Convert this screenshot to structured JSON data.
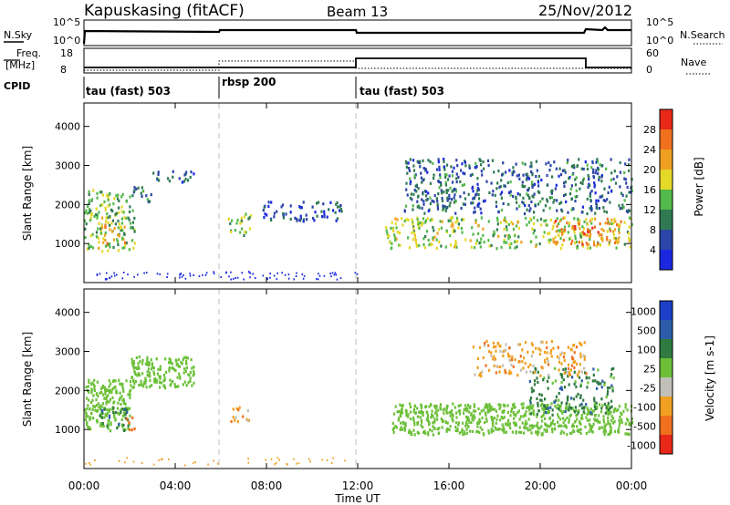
{
  "header": {
    "station": "Kapuskasing (fitACF)",
    "beam": "Beam 13",
    "date": "25/Nov/2012"
  },
  "noise_panel": {
    "left_label": "N.Sky",
    "left_ticks": [
      "10^5",
      "10^0"
    ],
    "right_label": "N.Search",
    "right_ticks": [
      "10^5",
      "10^0"
    ]
  },
  "freq_panel": {
    "label_line1": "Freq.",
    "label_line2": "[MHz]",
    "left_ticks": [
      "18",
      "8"
    ],
    "right_label": "Nave",
    "right_ticks": [
      "60",
      "0"
    ]
  },
  "cpid": {
    "label": "CPID",
    "segments": [
      {
        "text": "tau (fast) 503",
        "start_hour": 0
      },
      {
        "text": "rbsp 200",
        "start_hour": 6
      },
      {
        "text": "tau (fast) 503",
        "start_hour": 12
      }
    ]
  },
  "power_panel": {
    "ylabel": "Slant Range [km]",
    "yticks": [
      "1000",
      "2000",
      "3000",
      "4000"
    ],
    "colorbar_label": "Power [dB]",
    "colorbar_ticks": [
      "4",
      "8",
      "12",
      "16",
      "20",
      "24",
      "28"
    ],
    "colors": [
      "#1a28e0",
      "#2b45a8",
      "#2f7a52",
      "#52b94a",
      "#e4d828",
      "#f0a020",
      "#f07020",
      "#e82818"
    ]
  },
  "velocity_panel": {
    "ylabel": "Slant Range [km]",
    "yticks": [
      "1000",
      "2000",
      "3000",
      "4000"
    ],
    "colorbar_label": "Velocity [m s-1]",
    "colorbar_ticks": [
      "1000",
      "500",
      "100",
      "25",
      "-25",
      "-100",
      "-500",
      "-1000"
    ],
    "colors": [
      "#1c3ec8",
      "#2c5ca8",
      "#2e7a40",
      "#6cc038",
      "#c0c0b8",
      "#f0a020",
      "#f07020",
      "#e82818"
    ]
  },
  "x_axis": {
    "tick_labels": [
      "00:00",
      "04:00",
      "08:00",
      "12:00",
      "16:00",
      "20:00",
      "00:00"
    ],
    "label": "Time UT"
  },
  "chart_data": {
    "type": "heatmap",
    "title": "Kapuskasing (fitACF)   Beam 13   25/Nov/2012",
    "xlabel": "Time UT",
    "ylabel": "Slant Range [km]",
    "xlim_hours": [
      0,
      24
    ],
    "ylim_km": [
      0,
      4600
    ],
    "cpid_changes_hours": [
      6,
      12
    ],
    "power_blobs": [
      {
        "t0": 0.0,
        "t1": 2.2,
        "r0": 800,
        "r1": 2400,
        "level": 14
      },
      {
        "t0": 0.6,
        "t1": 1.8,
        "r0": 900,
        "r1": 1700,
        "level": 20
      },
      {
        "t0": 2.0,
        "t1": 3.0,
        "r0": 2100,
        "r1": 2500,
        "level": 10
      },
      {
        "t0": 3.0,
        "t1": 4.8,
        "r0": 2600,
        "r1": 2900,
        "level": 8
      },
      {
        "t0": 6.3,
        "t1": 7.3,
        "r0": 1200,
        "r1": 1800,
        "level": 14
      },
      {
        "t0": 7.8,
        "t1": 11.3,
        "r0": 1600,
        "r1": 2100,
        "level": 6
      },
      {
        "t0": 13.2,
        "t1": 24.0,
        "r0": 900,
        "r1": 1700,
        "level": 16
      },
      {
        "t0": 20.5,
        "t1": 23.5,
        "r0": 1000,
        "r1": 1700,
        "level": 24
      },
      {
        "t0": 14.0,
        "t1": 24.0,
        "r0": 1800,
        "r1": 3200,
        "level": 8
      }
    ],
    "velocity_blobs": [
      {
        "t0": 0.0,
        "t1": 2.0,
        "r0": 1000,
        "r1": 2300,
        "level": "25"
      },
      {
        "t0": 0.6,
        "t1": 1.9,
        "r0": 1000,
        "r1": 1600,
        "level": "100"
      },
      {
        "t0": 1.8,
        "t1": 2.2,
        "r0": 1000,
        "r1": 1400,
        "level": "-500"
      },
      {
        "t0": 2.0,
        "t1": 4.8,
        "r0": 2100,
        "r1": 2900,
        "level": "25"
      },
      {
        "t0": 6.4,
        "t1": 7.2,
        "r0": 1200,
        "r1": 1700,
        "level": "-100"
      },
      {
        "t0": 13.5,
        "t1": 24.0,
        "r0": 900,
        "r1": 1700,
        "level": "25"
      },
      {
        "t0": 19.5,
        "t1": 23.2,
        "r0": 1400,
        "r1": 2600,
        "level": "100"
      },
      {
        "t0": 17.0,
        "t1": 22.0,
        "r0": 2400,
        "r1": 3300,
        "level": "-100"
      }
    ]
  }
}
